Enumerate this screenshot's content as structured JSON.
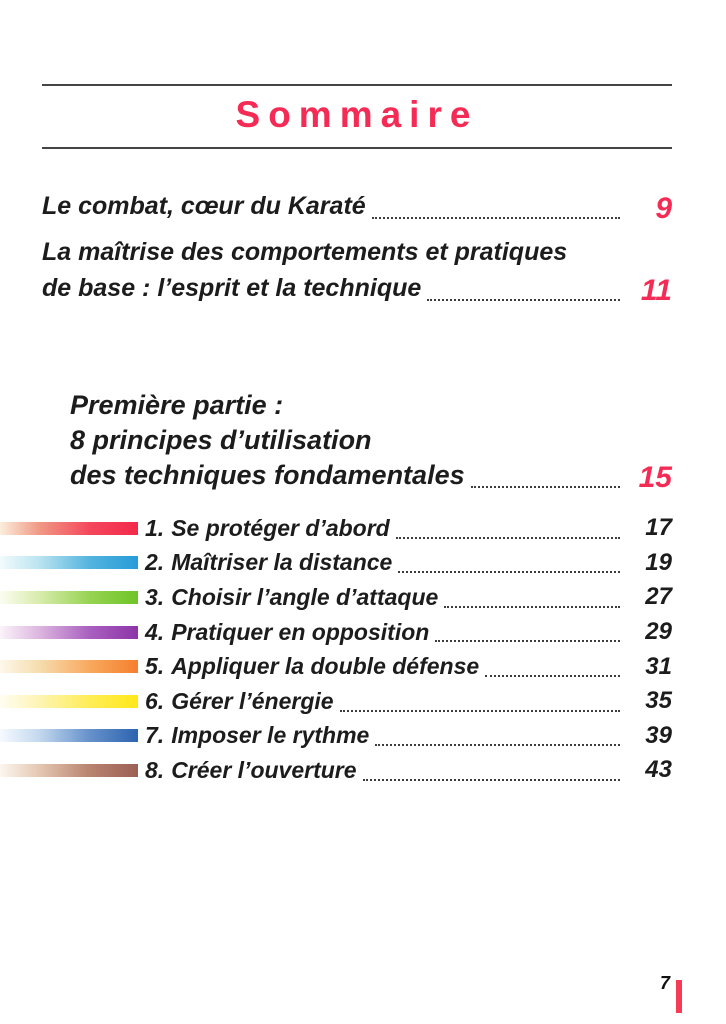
{
  "page": {
    "title": "Sommaire",
    "footer_page_number": "7",
    "colors": {
      "accent_red": "#f42c55",
      "text_black": "#1c1c1c",
      "rule_gray": "#454545"
    }
  },
  "toc": {
    "entries": [
      {
        "lines": [
          "Le combat, cœur du Karaté"
        ],
        "page": "9"
      },
      {
        "lines": [
          "La maîtrise des comportements et pratiques",
          "de base : l’esprit et la technique"
        ],
        "page": "11"
      }
    ],
    "part": {
      "lines": [
        "Première partie :",
        "8 principes d’utilisation",
        "des techniques fondamentales"
      ],
      "page": "15"
    },
    "items": [
      {
        "num": "1.",
        "label": "Se protéger d’abord",
        "page": "17",
        "bar_color": "#f3294a",
        "bar_gradient": [
          "#fbeedd 0%",
          "#f09a86 28%",
          "#f4475c 65%",
          "#f3294a 100%"
        ]
      },
      {
        "num": "2.",
        "label": "Maîtriser la distance",
        "page": "19",
        "bar_color": "#279bd8",
        "bar_gradient": [
          "#f2fbfd 0%",
          "#bce4f0 28%",
          "#53b4de 65%",
          "#279bd8 100%"
        ]
      },
      {
        "num": "3.",
        "label": "Choisir l’angle d’attaque",
        "page": "27",
        "bar_color": "#6fc428",
        "bar_gradient": [
          "#fbfdf0 0%",
          "#d9ecae 28%",
          "#97d352 65%",
          "#6fc428 100%"
        ]
      },
      {
        "num": "4.",
        "label": "Pratiquer en opposition",
        "page": "29",
        "bar_color": "#8c35a8",
        "bar_gradient": [
          "#fbf3fa 0%",
          "#ddb7e0 28%",
          "#a960bf 65%",
          "#8c35a8 100%"
        ]
      },
      {
        "num": "5.",
        "label": "Appliquer la double défense",
        "page": "31",
        "bar_color": "#f57f2e",
        "bar_gradient": [
          "#fdf8ea 0%",
          "#f6ddb0 28%",
          "#f8a95e 65%",
          "#f57f2e 100%"
        ]
      },
      {
        "num": "6.",
        "label": "Gérer l’énergie",
        "page": "35",
        "bar_color": "#ffe818",
        "bar_gradient": [
          "#fffdf2 0%",
          "#fdf4b4 28%",
          "#ffed56 65%",
          "#ffe818 100%"
        ]
      },
      {
        "num": "7.",
        "label": "Imposer le rythme",
        "page": "39",
        "bar_color": "#2d64b0",
        "bar_gradient": [
          "#f5faff 0%",
          "#c4d9ef 28%",
          "#6691cb 65%",
          "#2d64b0 100%"
        ]
      },
      {
        "num": "8.",
        "label": "Créer l’ouverture",
        "page": "43",
        "bar_color": "#9c5f55",
        "bar_gradient": [
          "#fcf6f0 0%",
          "#e5c8b3 28%",
          "#b8836f 65%",
          "#9c5f55 100%"
        ]
      }
    ]
  }
}
